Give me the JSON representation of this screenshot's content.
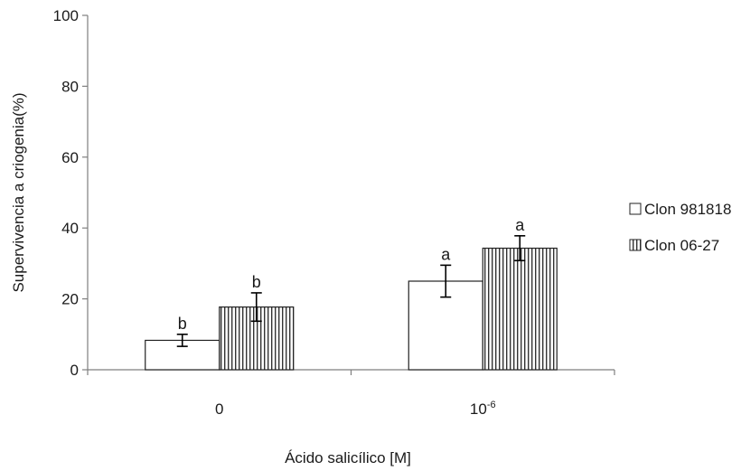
{
  "chart_data": {
    "type": "bar",
    "title": "",
    "xlabel": "Ácido salicílico [M]",
    "ylabel": "Supervivencia a criogenia(%)",
    "ylim": [
      0,
      100
    ],
    "yticks": [
      0,
      20,
      40,
      60,
      80,
      100
    ],
    "grid": false,
    "legend_position": "right",
    "categories": [
      {
        "label": "0",
        "exponent": ""
      },
      {
        "label": "10",
        "exponent": "-6"
      }
    ],
    "series": [
      {
        "name": "Clon 981818",
        "pattern": "solid",
        "fill": "#ffffff",
        "values": [
          8.3,
          25
        ],
        "errors": [
          1.7,
          4.5
        ],
        "significance": [
          "b",
          "a"
        ]
      },
      {
        "name": "Clon 06-27",
        "pattern": "vertical-stripes",
        "fill": "#ffffff",
        "values": [
          17.7,
          34.3
        ],
        "errors": [
          4,
          3.5
        ],
        "significance": [
          "b",
          "a"
        ]
      }
    ]
  }
}
